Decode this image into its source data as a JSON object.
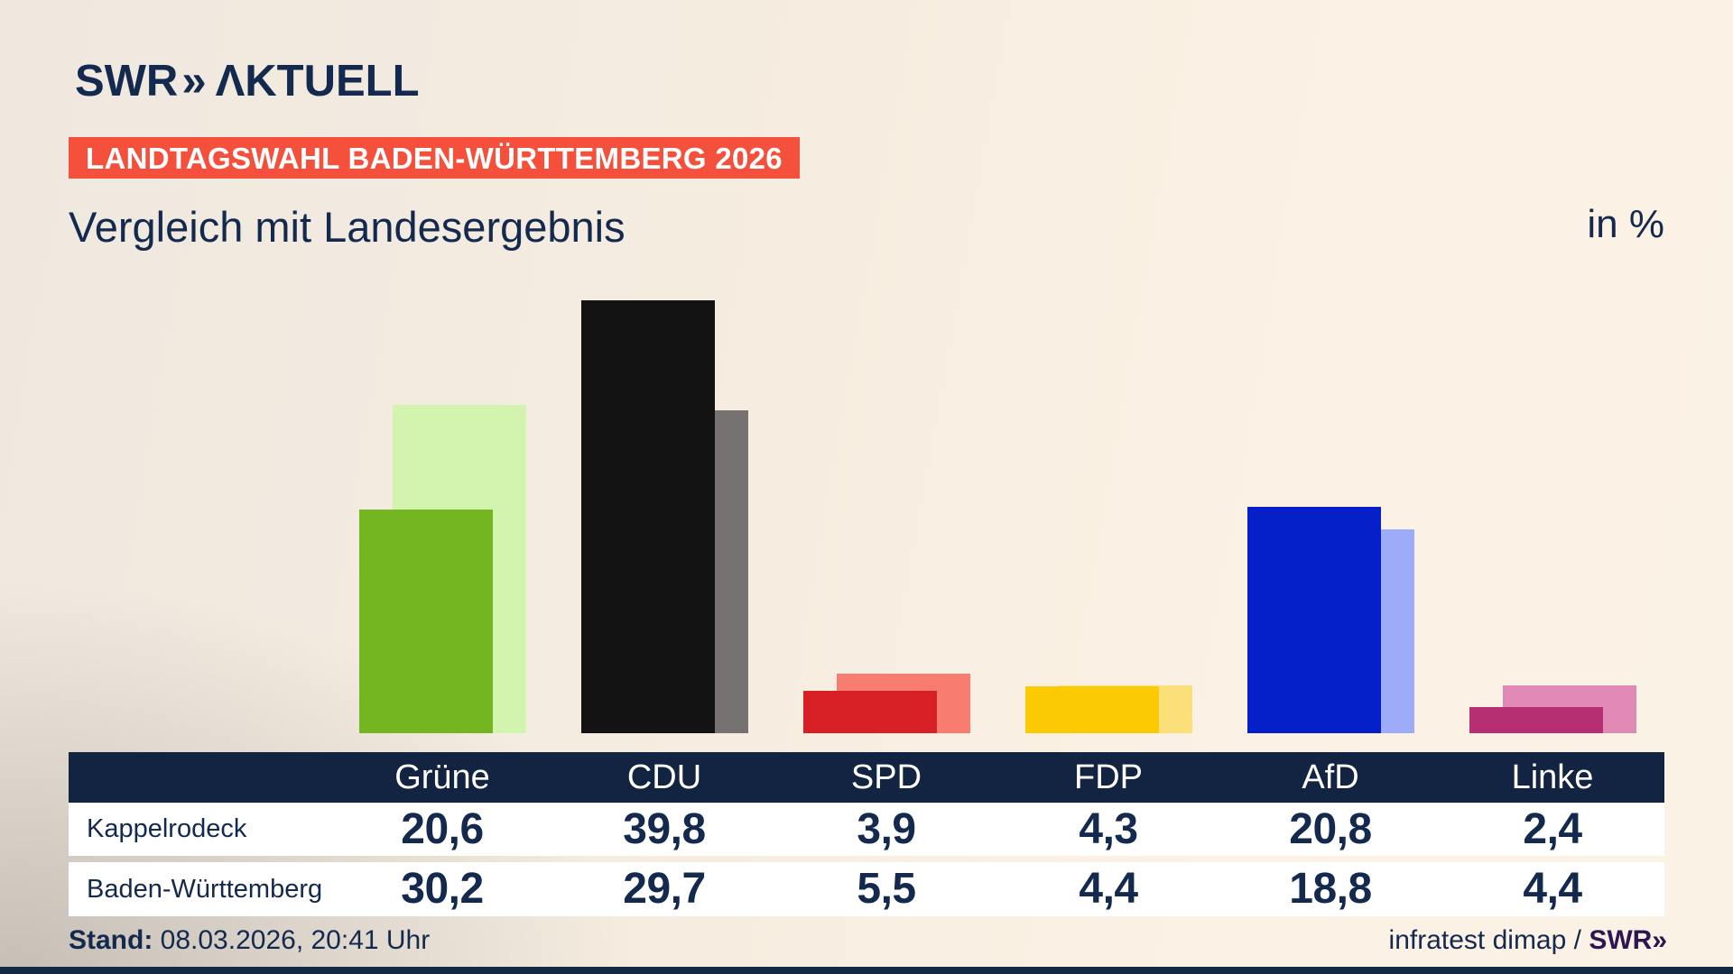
{
  "brand": {
    "swr": "SWR",
    "chevron": "»",
    "aktuell": "ΛKTUELL"
  },
  "badge": {
    "label": "LANDTAGSWAHL BADEN-WÜRTTEMBERG 2026"
  },
  "title": "Vergleich mit Landesergebnis",
  "unit_label": "in %",
  "theme": {
    "navy": "#14294e",
    "header_band": "#122441",
    "badge_bg": "#f4503c",
    "footer_brand": "#2f1551",
    "bottom_bar": "#142944"
  },
  "chart_data": {
    "type": "bar",
    "categories": [
      "Grüne",
      "CDU",
      "SPD",
      "FDP",
      "AfD",
      "Linke"
    ],
    "category_slugs": [
      "gruene",
      "cdu",
      "spd",
      "fdp",
      "afd",
      "linke"
    ],
    "series": [
      {
        "name": "Kappelrodeck",
        "values": [
          20.6,
          39.8,
          3.9,
          4.3,
          20.8,
          2.4
        ]
      },
      {
        "name": "Baden-Württemberg",
        "values": [
          30.2,
          29.7,
          5.5,
          4.4,
          18.8,
          4.4
        ]
      }
    ],
    "value_labels": [
      [
        "20,6",
        "39,8",
        "3,9",
        "4,3",
        "20,8",
        "2,4"
      ],
      [
        "30,2",
        "29,7",
        "5,5",
        "4,4",
        "18,8",
        "4,4"
      ]
    ],
    "colors": {
      "front": [
        "#74b622",
        "#131313",
        "#d62026",
        "#fcc905",
        "#0520c8",
        "#b62f73"
      ],
      "back": [
        "#d3f4ae",
        "#767271",
        "#f97c70",
        "#fbdf79",
        "#9cacf8",
        "#e189b6"
      ]
    },
    "title": "Vergleich mit Landesergebnis",
    "xlabel": "",
    "ylabel": "in %",
    "ylim": [
      0,
      42
    ],
    "grid": false,
    "legend_position": "table-below"
  },
  "footer": {
    "stand_label": "Stand:",
    "stand_value": "08.03.2026, 20:41 Uhr",
    "source": "infratest dimap / ",
    "brand_swr": "SWR",
    "brand_chevron": "»"
  }
}
